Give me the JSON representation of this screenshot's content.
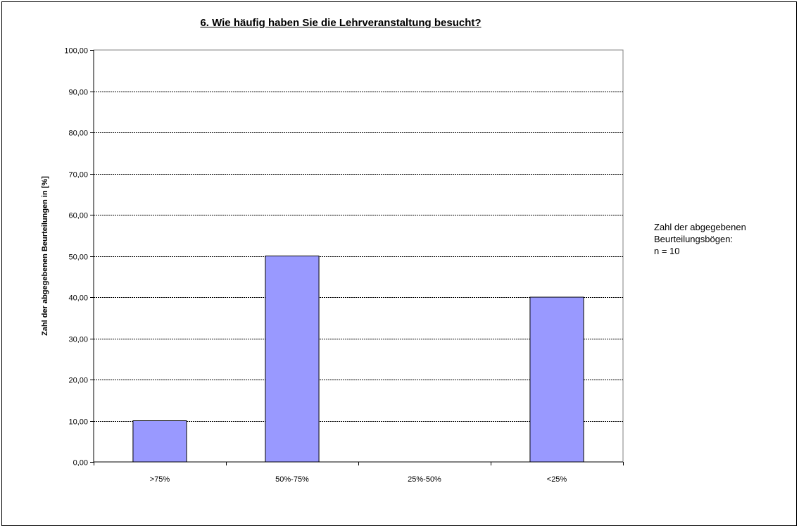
{
  "chart_data": {
    "type": "bar",
    "title": "6. Wie häufig haben Sie die Lehrveranstaltung besucht?",
    "xlabel": "",
    "ylabel": "Zahl der abgegebenen Beurteilungen in [%]",
    "categories": [
      ">75%",
      "50%-75%",
      "25%-50%",
      "<25%"
    ],
    "values": [
      10,
      50,
      0,
      40
    ],
    "ylim": [
      0,
      100
    ],
    "yticks": [
      "0,00",
      "10,00",
      "20,00",
      "30,00",
      "40,00",
      "50,00",
      "60,00",
      "70,00",
      "80,00",
      "90,00",
      "100,00"
    ],
    "grid": true,
    "bar_color": "#9999ff",
    "bar_edge_color": "#000000",
    "grid_color": "#000000"
  },
  "annotation": {
    "lines": [
      "Zahl der abgegebenen",
      "Beurteilungsbögen:",
      "n = 10"
    ]
  }
}
